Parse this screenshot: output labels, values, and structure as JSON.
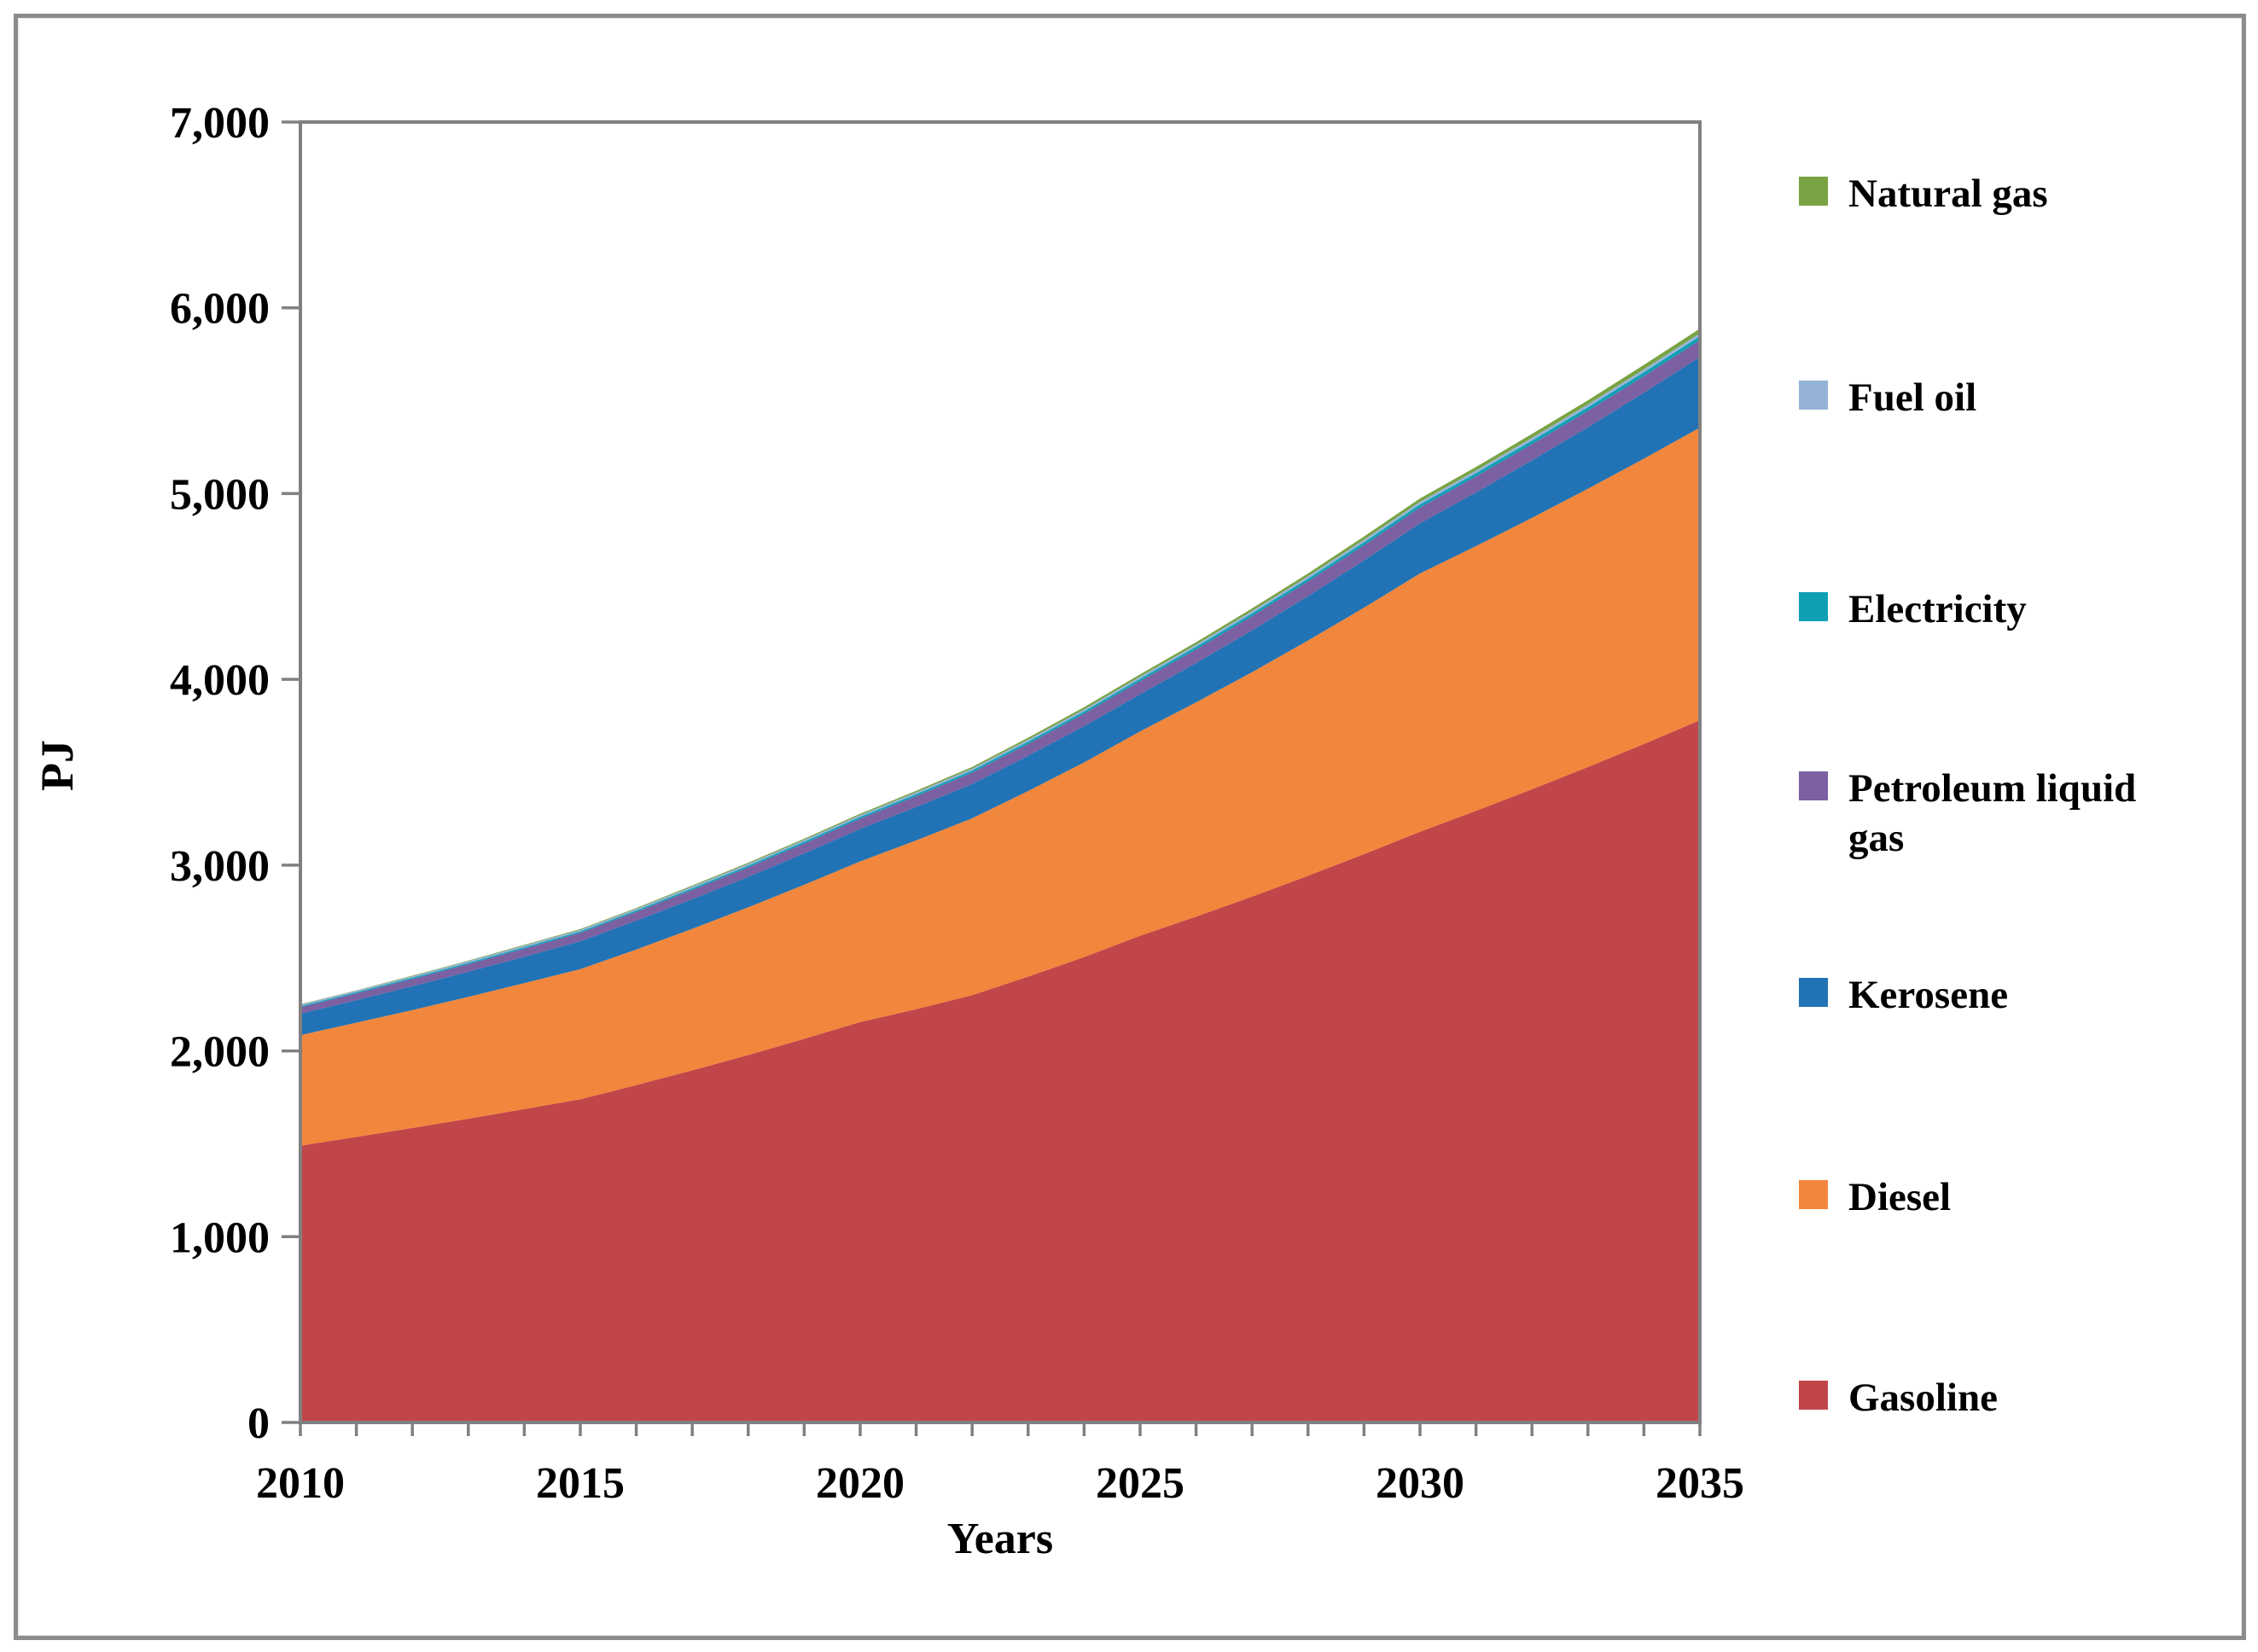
{
  "chart_data": {
    "type": "area",
    "stacked": true,
    "title": "",
    "xlabel": "Years",
    "ylabel": "PJ",
    "x": [
      2010,
      2011,
      2012,
      2013,
      2014,
      2015,
      2016,
      2017,
      2018,
      2019,
      2020,
      2021,
      2022,
      2023,
      2024,
      2025,
      2026,
      2027,
      2028,
      2029,
      2030,
      2031,
      2032,
      2033,
      2034,
      2035
    ],
    "x_tick_labels": [
      "2010",
      "2015",
      "2020",
      "2025",
      "2030",
      "2035"
    ],
    "x_labeled_years": [
      2010,
      2015,
      2020,
      2025,
      2030,
      2035
    ],
    "ylim": [
      0,
      7000
    ],
    "y_tick_step": 1000,
    "y_tick_labels": [
      "0",
      "1,000",
      "2,000",
      "3,000",
      "4,000",
      "5,000",
      "6,000",
      "7,000"
    ],
    "grid": "off",
    "legend_position": "right",
    "series": [
      {
        "name": "Gasoline",
        "color": "#C14649",
        "values": [
          1490,
          1537,
          1585,
          1635,
          1687,
          1740,
          1816,
          1895,
          1978,
          2065,
          2155,
          2225,
          2300,
          2400,
          2505,
          2620,
          2723,
          2831,
          2943,
          3059,
          3180,
          3292,
          3408,
          3528,
          3652,
          3780
        ]
      },
      {
        "name": "Diesel",
        "color": "#F1873C",
        "values": [
          595,
          615,
          635,
          656,
          678,
          700,
          730,
          762,
          795,
          829,
          865,
          908,
          952,
          999,
          1048,
          1100,
          1153,
          1208,
          1266,
          1327,
          1390,
          1425,
          1461,
          1498,
          1536,
          1575
        ]
      },
      {
        "name": "Kerosene",
        "color": "#2173B5",
        "values": [
          115,
          121,
          128,
          135,
          142,
          150,
          155,
          160,
          164,
          169,
          175,
          180,
          185,
          190,
          195,
          200,
          212,
          225,
          239,
          254,
          270,
          289,
          310,
          331,
          355,
          380
        ]
      },
      {
        "name": "Petroleum liquid gas",
        "color": "#7B60A2",
        "values": [
          35,
          37,
          39,
          41,
          43,
          45,
          47,
          49,
          51,
          53,
          55,
          58,
          61,
          64,
          67,
          70,
          73,
          76,
          79,
          82,
          85,
          86,
          87,
          88,
          89,
          90
        ]
      },
      {
        "name": "Electricity",
        "color": "#0E9FB5",
        "values": [
          6,
          6,
          7,
          7,
          8,
          8,
          8,
          9,
          9,
          10,
          10,
          11,
          11,
          12,
          12,
          13,
          14,
          15,
          15,
          16,
          17,
          18,
          19,
          20,
          21,
          22
        ]
      },
      {
        "name": "Fuel oil",
        "color": "#95B3D7",
        "values": [
          8,
          8,
          8,
          9,
          9,
          9,
          9,
          10,
          10,
          10,
          10,
          10,
          11,
          11,
          12,
          12,
          12,
          13,
          13,
          14,
          14,
          14,
          15,
          15,
          16,
          16
        ]
      },
      {
        "name": "Natural gas",
        "color": "#79A342",
        "values": [
          2,
          2,
          3,
          3,
          4,
          4,
          4,
          5,
          6,
          6,
          7,
          8,
          9,
          10,
          11,
          12,
          13,
          14,
          15,
          17,
          18,
          19,
          21,
          22,
          24,
          25
        ]
      }
    ],
    "legend_order_top_to_bottom": [
      "Natural gas",
      "Fuel oil",
      "Electricity",
      "Petroleum liquid gas",
      "Kerosene",
      "Diesel",
      "Gasoline"
    ]
  },
  "colors": {
    "axis": "#808080",
    "text": "#000000",
    "frame": "#8C8C8C",
    "background": "#FFFFFF"
  }
}
